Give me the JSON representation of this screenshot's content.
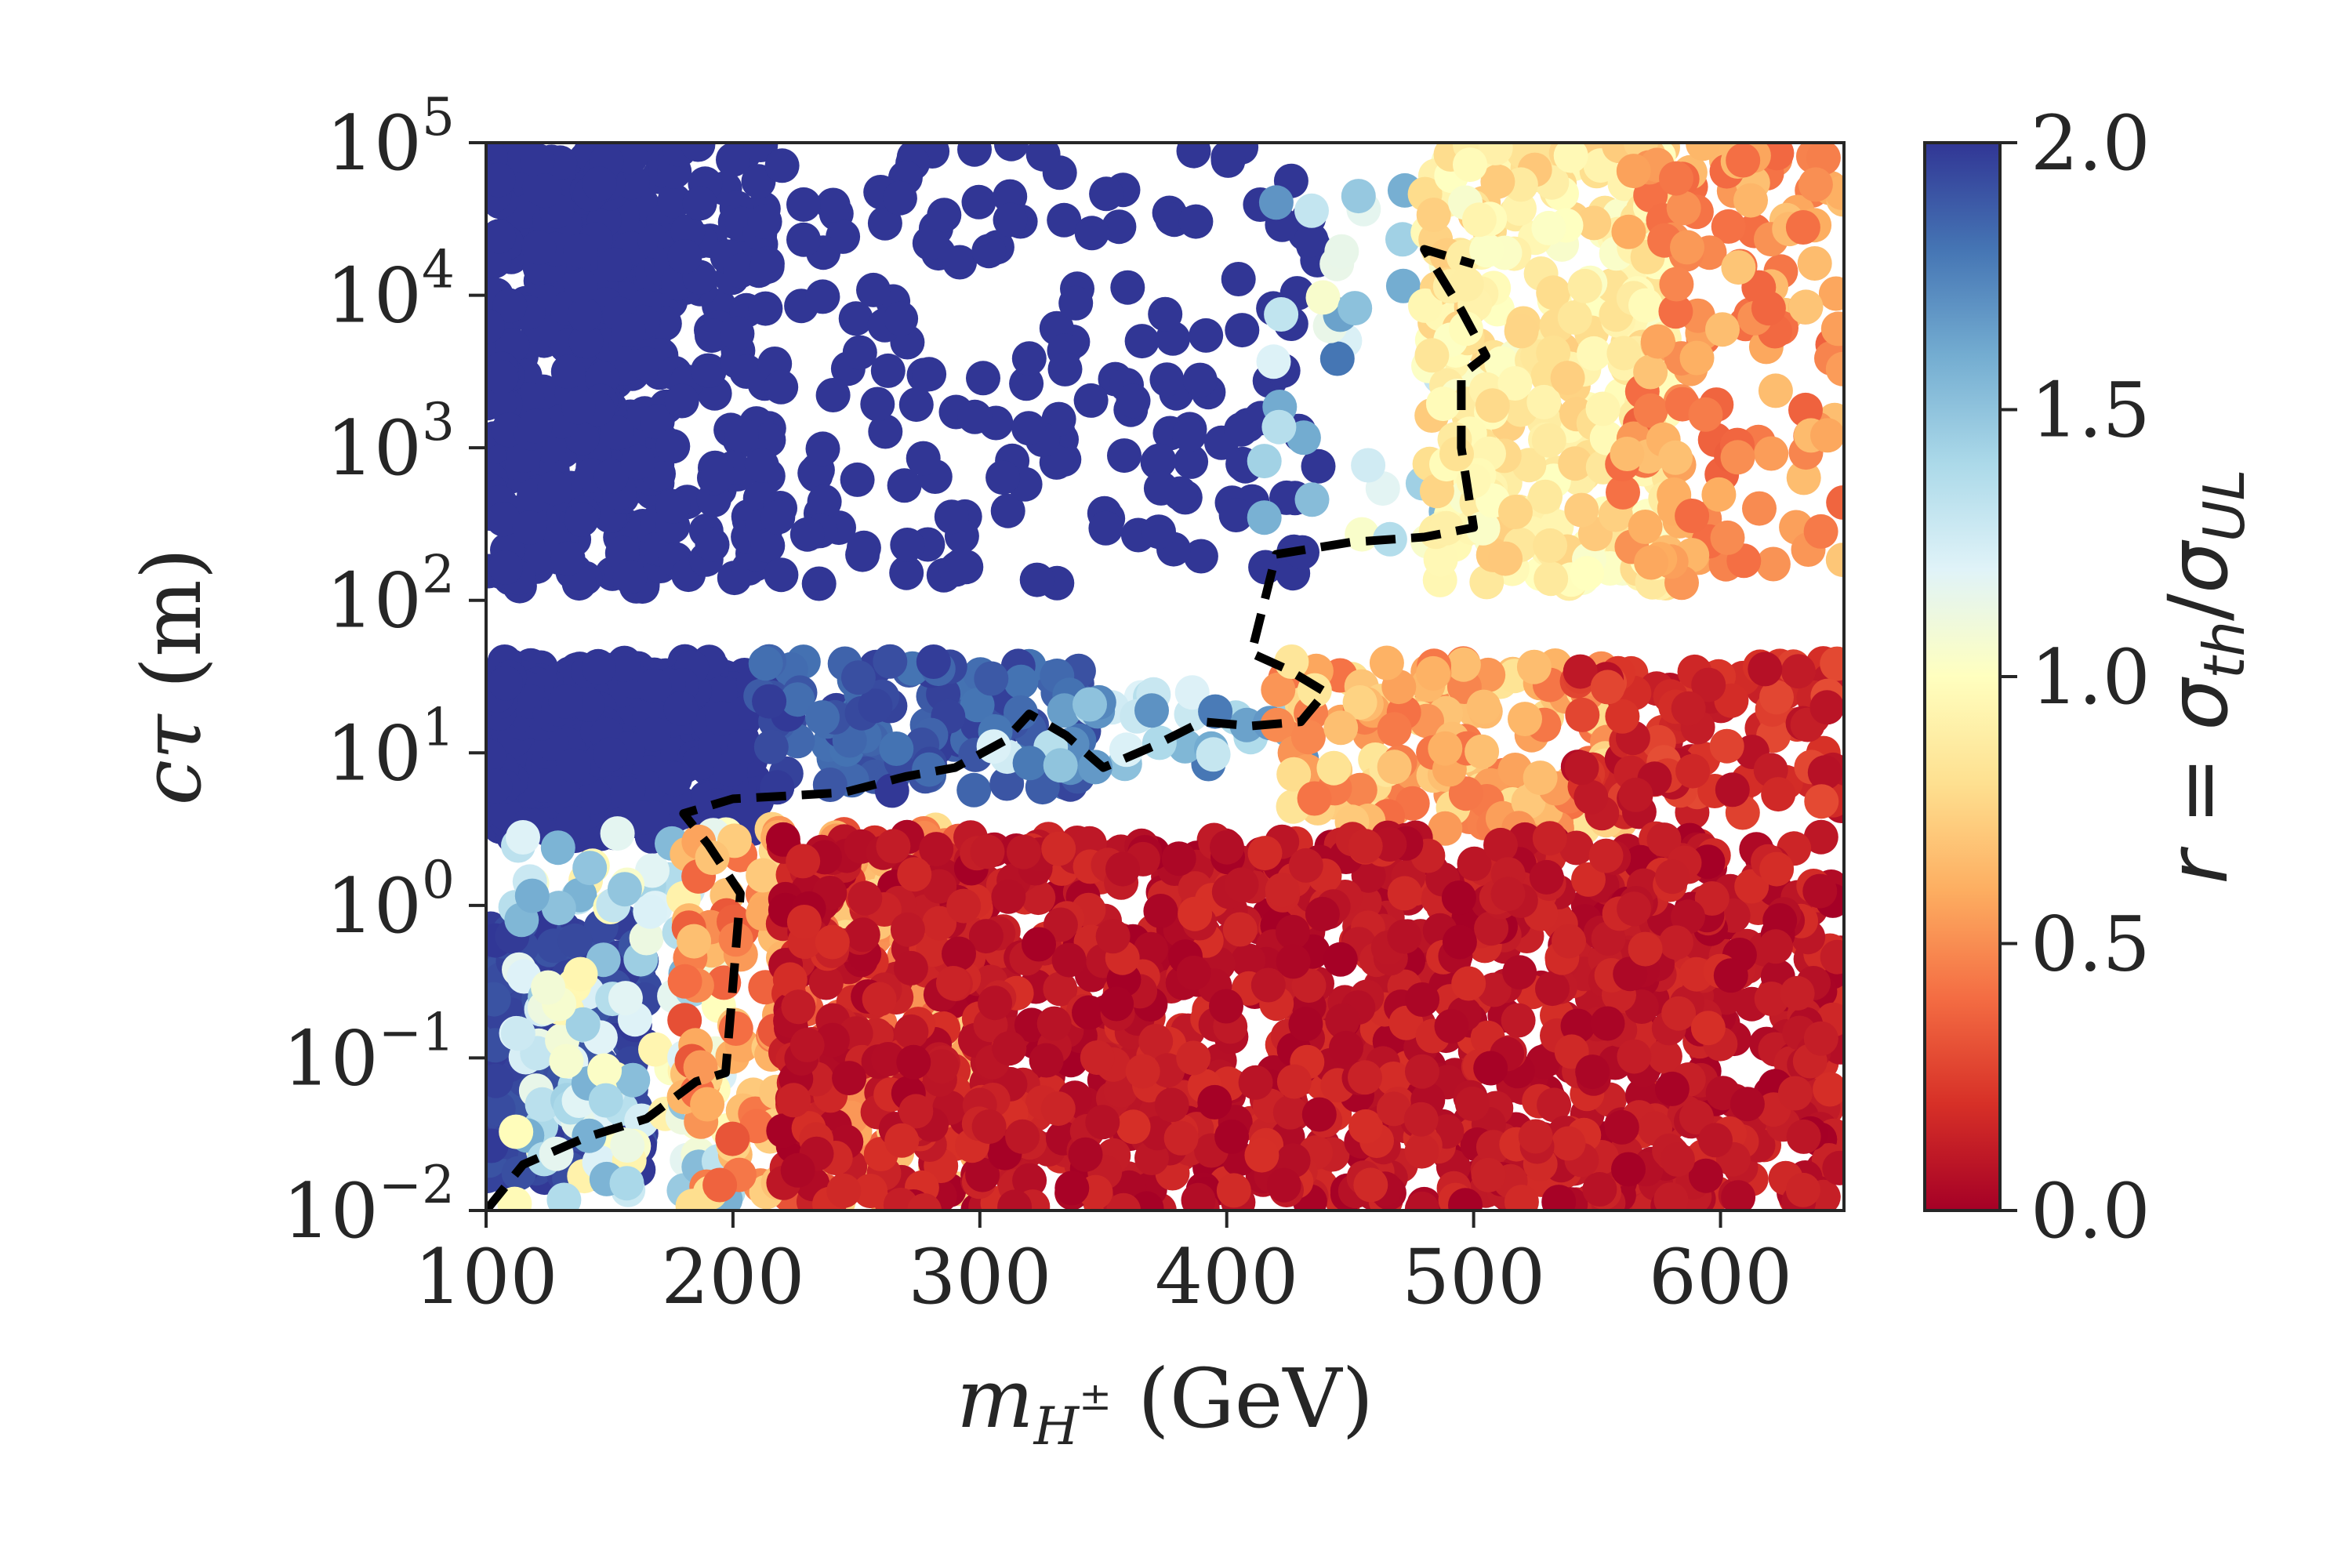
{
  "chart_data": {
    "type": "scatter",
    "title": "",
    "xlabel": "m_{H±} (GeV)",
    "ylabel": "cτ (m)",
    "xlim": [
      100,
      650
    ],
    "ylim": [
      0.01,
      100000
    ],
    "yscale": "log",
    "x_ticks": [
      {
        "value": 100,
        "label": "100"
      },
      {
        "value": 200,
        "label": "200"
      },
      {
        "value": 300,
        "label": "300"
      },
      {
        "value": 400,
        "label": "400"
      },
      {
        "value": 500,
        "label": "500"
      },
      {
        "value": 600,
        "label": "600"
      }
    ],
    "y_ticks": [
      {
        "exp": -2,
        "base": "10",
        "sup": "−2"
      },
      {
        "exp": -1,
        "base": "10",
        "sup": "−1"
      },
      {
        "exp": 0,
        "base": "10",
        "sup": "0"
      },
      {
        "exp": 1,
        "base": "10",
        "sup": "1"
      },
      {
        "exp": 2,
        "base": "10",
        "sup": "2"
      },
      {
        "exp": 3,
        "base": "10",
        "sup": "3"
      },
      {
        "exp": 4,
        "base": "10",
        "sup": "4"
      },
      {
        "exp": 5,
        "base": "10",
        "sup": "5"
      }
    ],
    "colorbar": {
      "label": "r = σ_th/σ_UL",
      "colormap": "RdYlBu",
      "range": [
        0.0,
        2.0
      ],
      "ticks": [
        "0.0",
        "0.5",
        "1.0",
        "1.5",
        "2.0"
      ],
      "colors": [
        "#a50026",
        "#d73027",
        "#f46d43",
        "#fdae61",
        "#fee090",
        "#ffffbf",
        "#e0f3f8",
        "#abd9e9",
        "#74add1",
        "#4575b4",
        "#313695"
      ]
    },
    "gap_band_ctau": [
      40,
      120
    ],
    "regions": [
      {
        "name": "blue-left",
        "x": [
          100,
          175
        ],
        "logy": [
          1.75,
          5
        ],
        "r": [
          2,
          2
        ],
        "n": 420
      },
      {
        "name": "blue-left-mid",
        "x": [
          175,
          215
        ],
        "logy": [
          2.1,
          5
        ],
        "r": [
          2,
          2
        ],
        "n": 90
      },
      {
        "name": "blue-upper-scatter",
        "x": [
          210,
          440
        ],
        "logy": [
          2.1,
          5
        ],
        "r": [
          2,
          2
        ],
        "n": 190
      },
      {
        "name": "blue-light-boundary-upper",
        "x": [
          415,
          490
        ],
        "logy": [
          2.4,
          4.7
        ],
        "r": [
          1.0,
          1.8
        ],
        "n": 35
      },
      {
        "name": "orange-upper-right",
        "x": [
          480,
          580
        ],
        "logy": [
          2.1,
          5
        ],
        "r": [
          0.7,
          1.05
        ],
        "n": 320
      },
      {
        "name": "orange-upper-far",
        "x": [
          560,
          650
        ],
        "logy": [
          2.1,
          5
        ],
        "r": [
          0.35,
          0.7
        ],
        "n": 140
      },
      {
        "name": "blue-mid-left",
        "x": [
          100,
          210
        ],
        "logy": [
          0.45,
          1.6
        ],
        "r": [
          2,
          2
        ],
        "n": 380
      },
      {
        "name": "blue-mid-band",
        "x": [
          210,
          345
        ],
        "logy": [
          0.75,
          1.6
        ],
        "r": [
          1.8,
          2
        ],
        "n": 120
      },
      {
        "name": "light-mid-band",
        "x": [
          300,
          440
        ],
        "logy": [
          0.9,
          1.4
        ],
        "r": [
          1.2,
          1.8
        ],
        "n": 40
      },
      {
        "name": "orange-mid-right",
        "x": [
          420,
          560
        ],
        "logy": [
          0.5,
          1.6
        ],
        "r": [
          0.4,
          0.85
        ],
        "n": 160
      },
      {
        "name": "red-mid-far",
        "x": [
          540,
          650
        ],
        "logy": [
          0.6,
          1.6
        ],
        "r": [
          0.05,
          0.3
        ],
        "n": 120
      },
      {
        "name": "blue-bottom-left",
        "x": [
          100,
          165
        ],
        "logy": [
          -1.8,
          -0.1
        ],
        "r": [
          1.9,
          2
        ],
        "n": 260
      },
      {
        "name": "light-bottom-boundary",
        "x": [
          110,
          200
        ],
        "logy": [
          -2,
          0.5
        ],
        "r": [
          0.9,
          1.6
        ],
        "n": 130
      },
      {
        "name": "orange-bottom-mid",
        "x": [
          180,
          300
        ],
        "logy": [
          -2,
          0.5
        ],
        "r": [
          0.3,
          0.8
        ],
        "n": 240
      },
      {
        "name": "red-bottom",
        "x": [
          220,
          650
        ],
        "logy": [
          -2,
          0.45
        ],
        "r": [
          0.0,
          0.2
        ],
        "n": 1300
      }
    ],
    "exclusion_contour": {
      "style": "black dashed",
      "points": [
        [
          100,
          0.01
        ],
        [
          115,
          0.02
        ],
        [
          140,
          0.03
        ],
        [
          165,
          0.04
        ],
        [
          185,
          0.07
        ],
        [
          197,
          0.08
        ],
        [
          200,
          0.3
        ],
        [
          203,
          1.2
        ],
        [
          190,
          2.5
        ],
        [
          180,
          4
        ],
        [
          200,
          5
        ],
        [
          220,
          5.2
        ],
        [
          245,
          5.5
        ],
        [
          270,
          7
        ],
        [
          290,
          8
        ],
        [
          310,
          12
        ],
        [
          320,
          18
        ],
        [
          335,
          13
        ],
        [
          350,
          8
        ],
        [
          370,
          11
        ],
        [
          390,
          16
        ],
        [
          410,
          15
        ],
        [
          430,
          16
        ],
        [
          440,
          25
        ],
        [
          425,
          35
        ],
        [
          410,
          45
        ],
        [
          420,
          200
        ],
        [
          450,
          240
        ],
        [
          480,
          260
        ],
        [
          500,
          300
        ],
        [
          495,
          1000
        ],
        [
          495,
          3000
        ],
        [
          505,
          4000
        ],
        [
          495,
          8000
        ],
        [
          480,
          20000
        ],
        [
          500,
          16000
        ]
      ]
    }
  }
}
